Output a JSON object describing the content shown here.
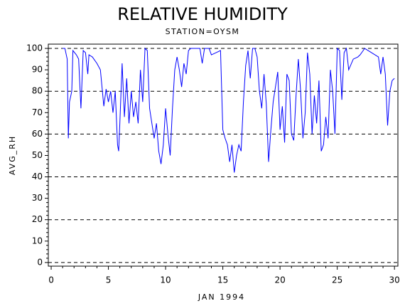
{
  "chart_data": {
    "type": "line",
    "title": "RELATIVE HUMIDITY",
    "subtitle": "STATION=OYSM",
    "x_label": "JAN 1994",
    "y_label": "AVG_RH",
    "xlim": [
      -0.25,
      30.3
    ],
    "ylim": [
      -1.7,
      102
    ],
    "xticks": [
      0,
      5,
      10,
      15,
      20,
      25,
      30
    ],
    "yticks": [
      0,
      10,
      20,
      30,
      40,
      50,
      60,
      70,
      80,
      90,
      100
    ],
    "grid": true,
    "series": [
      {
        "name": "AVG_RH",
        "color": "#0000ff",
        "x": [
          1.0,
          1.2,
          1.4,
          1.5,
          1.6,
          1.8,
          1.9,
          2.2,
          2.4,
          2.6,
          2.8,
          3.0,
          3.2,
          3.3,
          3.6,
          4.0,
          4.3,
          4.6,
          4.8,
          5.0,
          5.2,
          5.4,
          5.6,
          5.8,
          5.9,
          6.0,
          6.2,
          6.4,
          6.6,
          6.8,
          7.0,
          7.2,
          7.4,
          7.6,
          7.8,
          8.0,
          8.2,
          8.4,
          8.6,
          8.8,
          9.0,
          9.2,
          9.4,
          9.6,
          9.8,
          10.0,
          10.2,
          10.4,
          10.6,
          10.8,
          11.0,
          11.2,
          11.4,
          11.6,
          11.8,
          12.0,
          12.2,
          12.6,
          13.0,
          13.2,
          13.4,
          13.8,
          14.0,
          14.4,
          14.8,
          15.0,
          15.2,
          15.4,
          15.6,
          15.8,
          16.0,
          16.2,
          16.4,
          16.6,
          16.8,
          17.0,
          17.2,
          17.4,
          17.6,
          17.8,
          18.0,
          18.2,
          18.4,
          18.6,
          18.8,
          19.0,
          19.2,
          19.4,
          19.6,
          19.8,
          20.0,
          20.2,
          20.4,
          20.6,
          20.8,
          21.0,
          21.2,
          21.4,
          21.6,
          21.8,
          22.0,
          22.2,
          22.4,
          22.6,
          22.8,
          23.0,
          23.2,
          23.4,
          23.6,
          23.8,
          24.0,
          24.2,
          24.4,
          24.6,
          24.8,
          25.0,
          25.2,
          25.4,
          25.6,
          25.8,
          26.0,
          26.4,
          26.8,
          27.0,
          27.4,
          28.0,
          28.6,
          28.8,
          29.0,
          29.2,
          29.4,
          29.6,
          29.8,
          30.0
        ],
        "values": [
          100,
          100,
          95,
          58,
          75,
          80,
          99,
          97,
          95,
          72,
          99,
          98,
          88,
          97,
          96,
          93,
          90,
          73,
          81,
          75,
          80,
          70,
          80,
          55,
          52,
          65,
          93,
          68,
          86,
          65,
          80,
          68,
          75,
          65,
          90,
          75,
          100,
          99,
          72,
          65,
          58,
          65,
          52,
          46,
          55,
          72,
          60,
          50,
          72,
          90,
          96,
          90,
          82,
          93,
          88,
          99,
          100,
          100,
          100,
          93,
          100,
          100,
          97,
          98,
          99,
          62,
          58,
          55,
          47,
          55,
          42,
          50,
          55,
          52,
          75,
          92,
          99,
          86,
          100,
          100,
          96,
          80,
          72,
          88,
          74,
          47,
          62,
          75,
          82,
          89,
          62,
          73,
          56,
          88,
          85,
          60,
          57,
          78,
          95,
          80,
          58,
          70,
          98,
          88,
          60,
          78,
          65,
          85,
          52,
          55,
          68,
          58,
          90,
          80,
          60,
          100,
          99,
          76,
          98,
          100,
          90,
          95,
          96,
          97,
          100,
          98,
          96,
          88,
          96,
          88,
          64,
          80,
          85,
          86
        ]
      }
    ]
  }
}
